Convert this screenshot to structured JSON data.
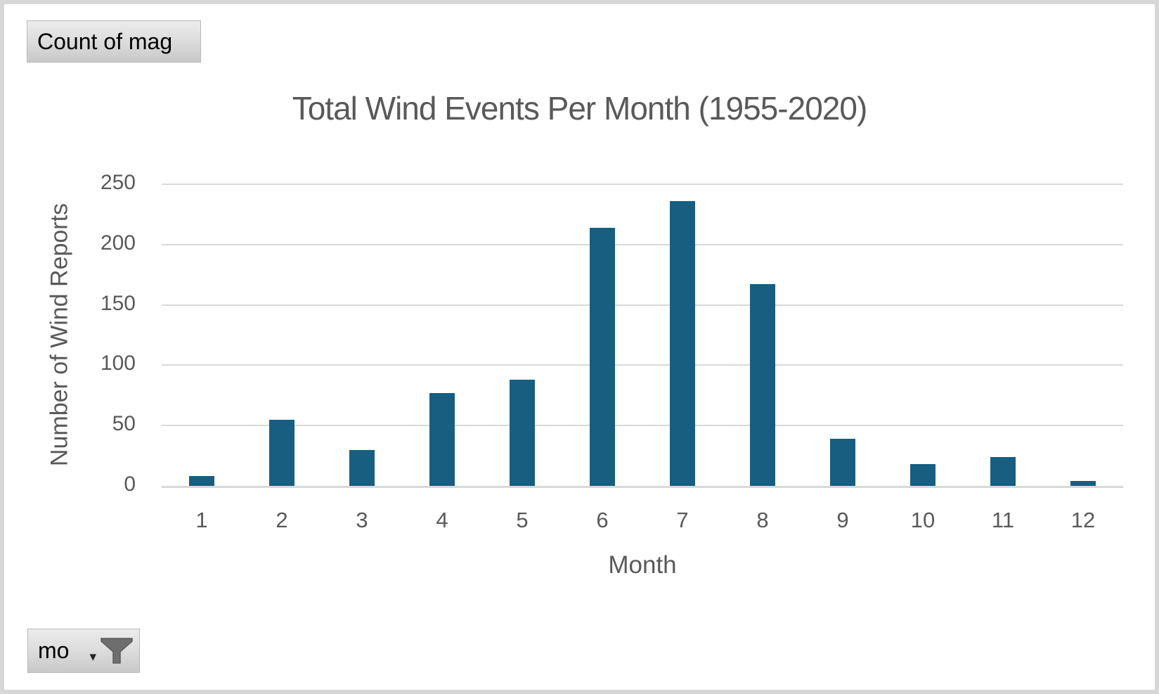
{
  "window": {
    "background_color": "#FFFFFF",
    "frame_border_color": "#D7D7D7"
  },
  "pivot_buttons": {
    "value_field": {
      "label": "Count of mag"
    },
    "axis_field": {
      "label": "mo",
      "dropdown_icon": "caret-down-icon",
      "filter_icon": "funnel-icon"
    }
  },
  "chart_data": {
    "type": "bar",
    "title": "Total Wind Events Per Month (1955-2020)",
    "xlabel": "Month",
    "ylabel": "Number of Wind Reports",
    "categories": [
      1,
      2,
      3,
      4,
      5,
      6,
      7,
      8,
      9,
      10,
      11,
      12
    ],
    "values": [
      8,
      55,
      30,
      77,
      88,
      214,
      236,
      167,
      39,
      18,
      24,
      4
    ],
    "ylim": [
      0,
      250
    ],
    "yticks": [
      0,
      50,
      100,
      150,
      200,
      250
    ],
    "grid": true,
    "legend": "none",
    "bar_color": "#175E81",
    "gridline_color": "#D9D9D9",
    "text_color": "#595959"
  }
}
